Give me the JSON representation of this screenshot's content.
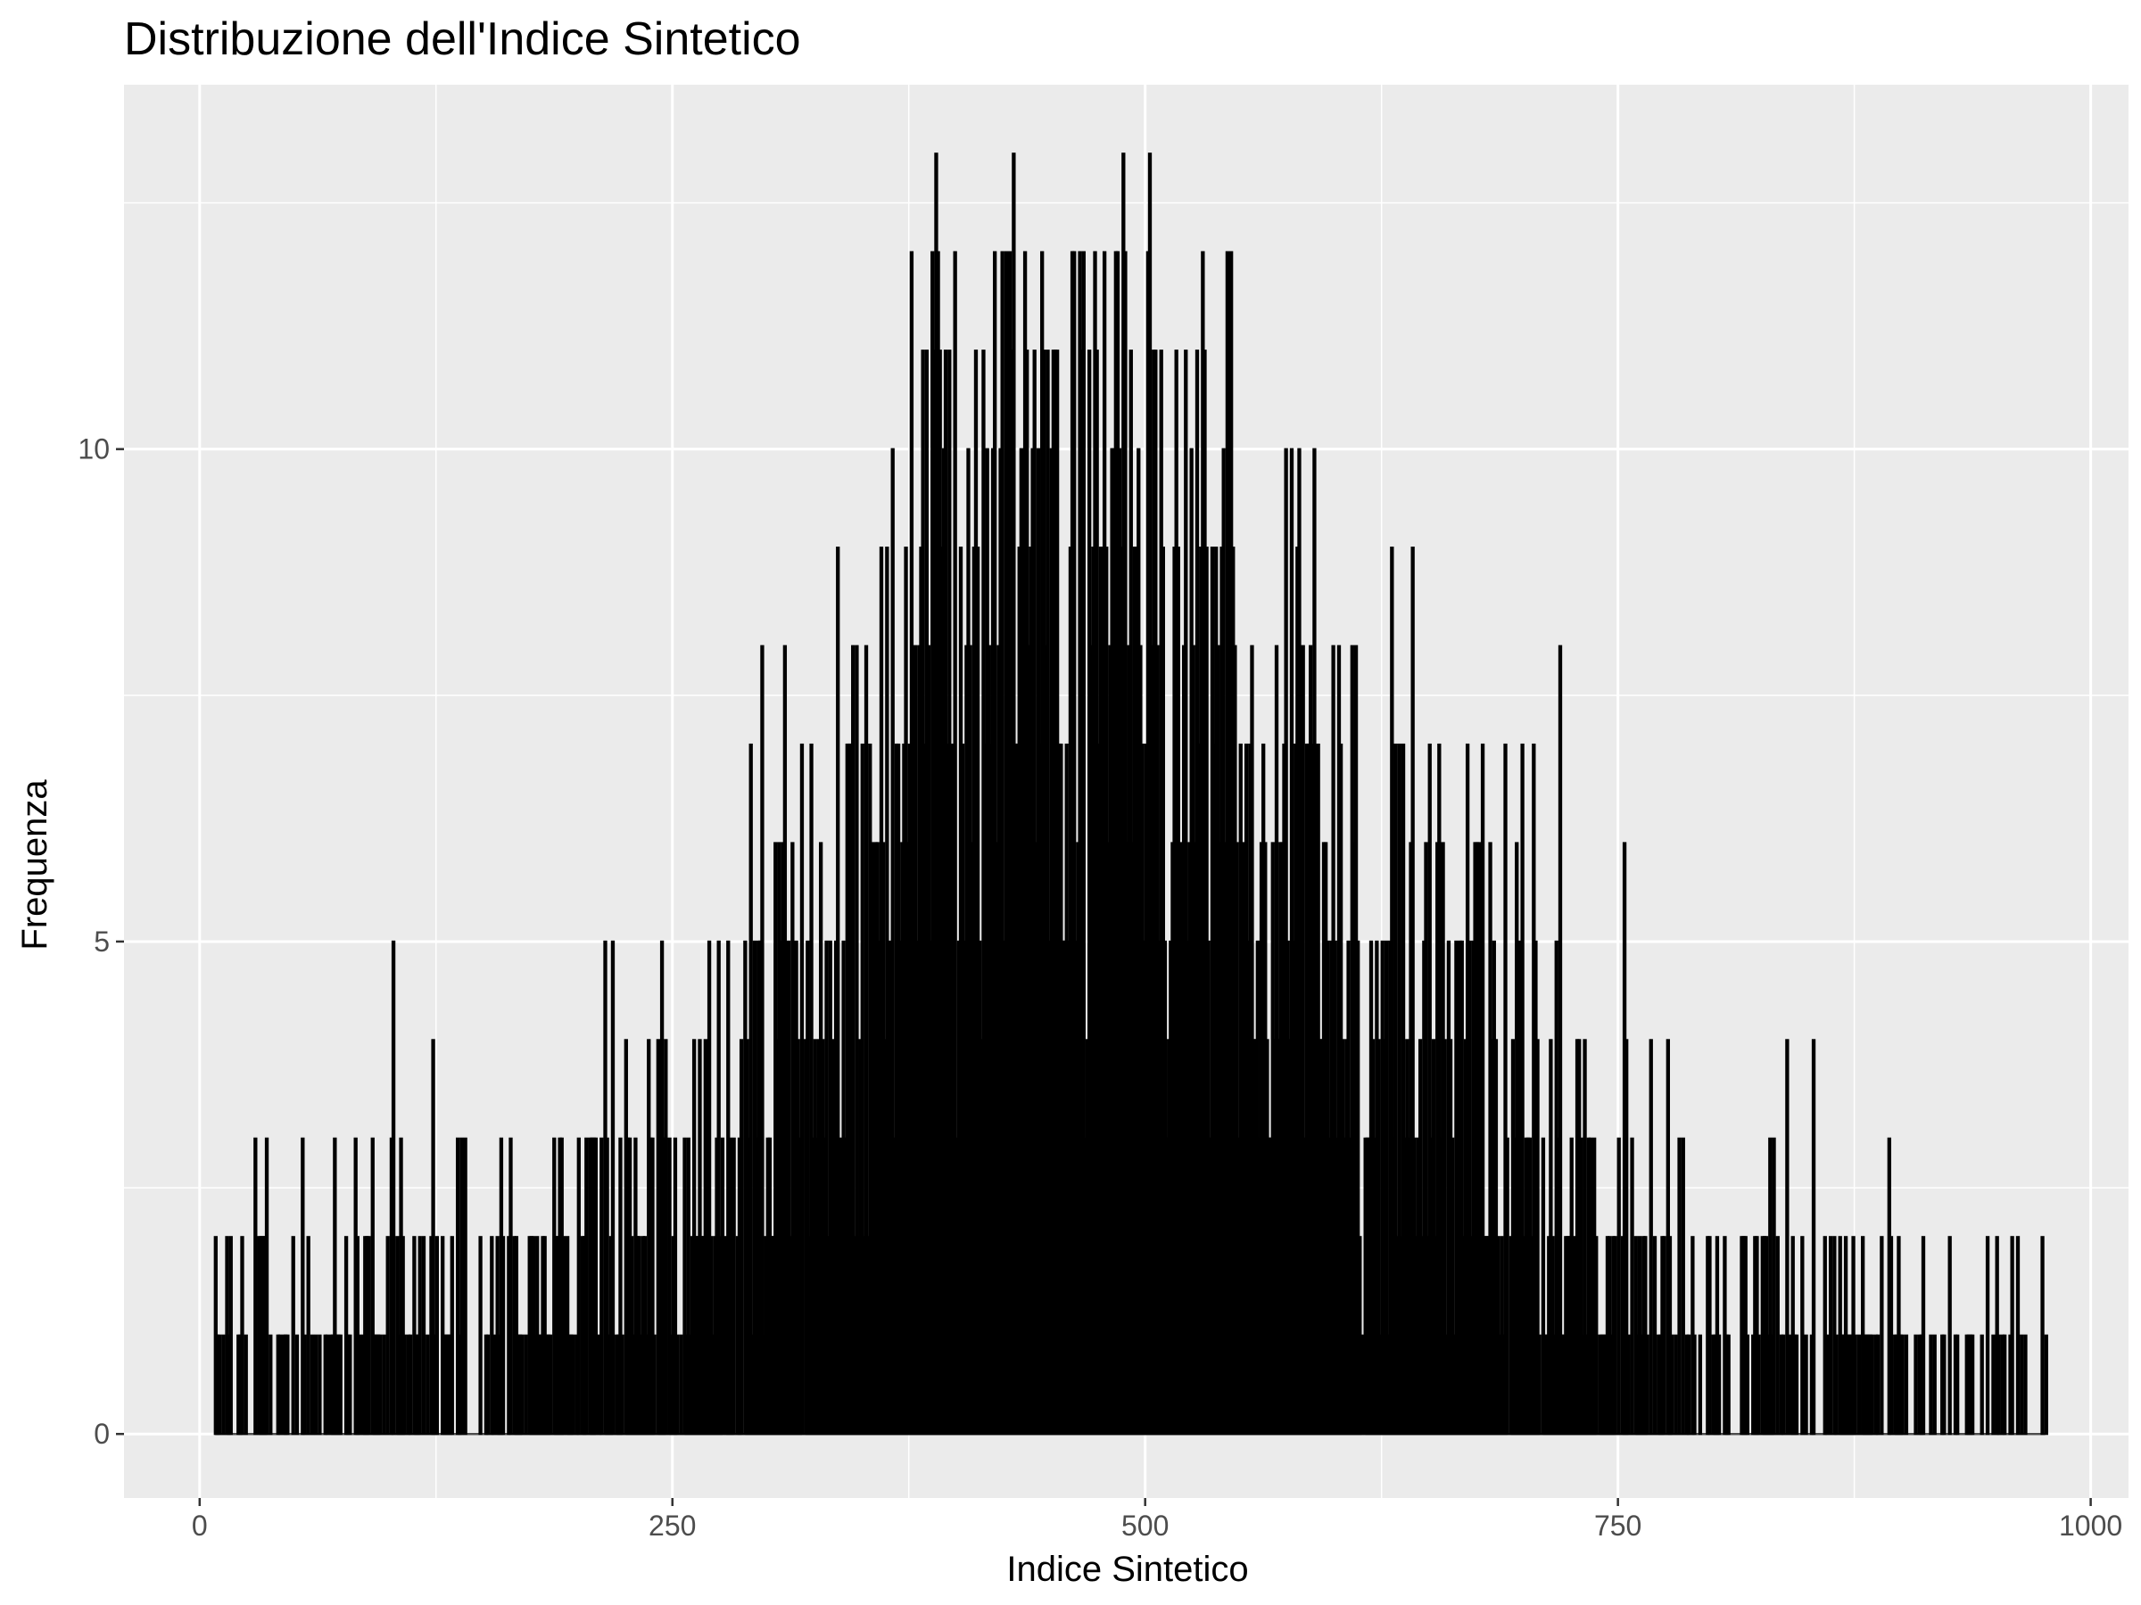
{
  "chart_data": {
    "type": "histogram",
    "title": "Distribuzione dell'Indice Sintetico",
    "xlabel": "Indice Sintetico",
    "ylabel": "Frequenza",
    "xlim": [
      -40,
      1020
    ],
    "ylim": [
      -0.65,
      13.7
    ],
    "x_ticks": [
      0,
      250,
      500,
      750,
      1000
    ],
    "y_ticks": [
      0,
      5,
      10
    ],
    "x_tick_labels": [
      "0",
      "250",
      "500",
      "750",
      "1000"
    ],
    "y_tick_labels": [
      "0",
      "5",
      "10"
    ],
    "bin_width": 1,
    "x_start": 8,
    "x_end": 975,
    "grid": true,
    "legend": "none",
    "bar_fill": "#000000",
    "panel_background": "#ebebeb",
    "grid_color": "#ffffff",
    "frequency_envelope": [
      [
        8,
        0.9
      ],
      [
        50,
        0.9
      ],
      [
        100,
        1.0
      ],
      [
        150,
        1.2
      ],
      [
        200,
        1.6
      ],
      [
        250,
        2.3
      ],
      [
        300,
        3.4
      ],
      [
        340,
        4.7
      ],
      [
        370,
        6.5
      ],
      [
        400,
        8.2
      ],
      [
        430,
        8.9
      ],
      [
        460,
        9.0
      ],
      [
        490,
        8.6
      ],
      [
        520,
        7.9
      ],
      [
        560,
        6.9
      ],
      [
        600,
        5.6
      ],
      [
        650,
        4.3
      ],
      [
        700,
        3.0
      ],
      [
        750,
        1.8
      ],
      [
        800,
        1.1
      ],
      [
        850,
        0.9
      ],
      [
        900,
        0.7
      ],
      [
        950,
        0.5
      ],
      [
        975,
        0.4
      ]
    ],
    "notable_peaks": [
      {
        "x": 389,
        "y": 13
      },
      {
        "x": 430,
        "y": 13
      },
      {
        "x": 488,
        "y": 13
      },
      {
        "x": 502,
        "y": 13
      },
      {
        "x": 420,
        "y": 12
      },
      {
        "x": 436,
        "y": 12
      },
      {
        "x": 462,
        "y": 12
      },
      {
        "x": 465,
        "y": 12
      },
      {
        "x": 382,
        "y": 11
      },
      {
        "x": 391,
        "y": 11
      },
      {
        "x": 396,
        "y": 11
      },
      {
        "x": 410,
        "y": 11
      },
      {
        "x": 448,
        "y": 11
      },
      {
        "x": 474,
        "y": 11
      },
      {
        "x": 492,
        "y": 11
      },
      {
        "x": 516,
        "y": 11
      },
      {
        "x": 521,
        "y": 11
      },
      {
        "x": 366,
        "y": 10
      },
      {
        "x": 589,
        "y": 10
      },
      {
        "x": 537,
        "y": 9
      },
      {
        "x": 599,
        "y": 8
      },
      {
        "x": 296,
        "y": 5
      },
      {
        "x": 311,
        "y": 5
      },
      {
        "x": 671,
        "y": 5
      },
      {
        "x": 706,
        "y": 5
      },
      {
        "x": 225,
        "y": 4
      },
      {
        "x": 242,
        "y": 4
      },
      {
        "x": 286,
        "y": 4
      },
      {
        "x": 159,
        "y": 3
      },
      {
        "x": 164,
        "y": 3
      },
      {
        "x": 784,
        "y": 3
      },
      {
        "x": 976,
        "y": 1
      }
    ]
  }
}
